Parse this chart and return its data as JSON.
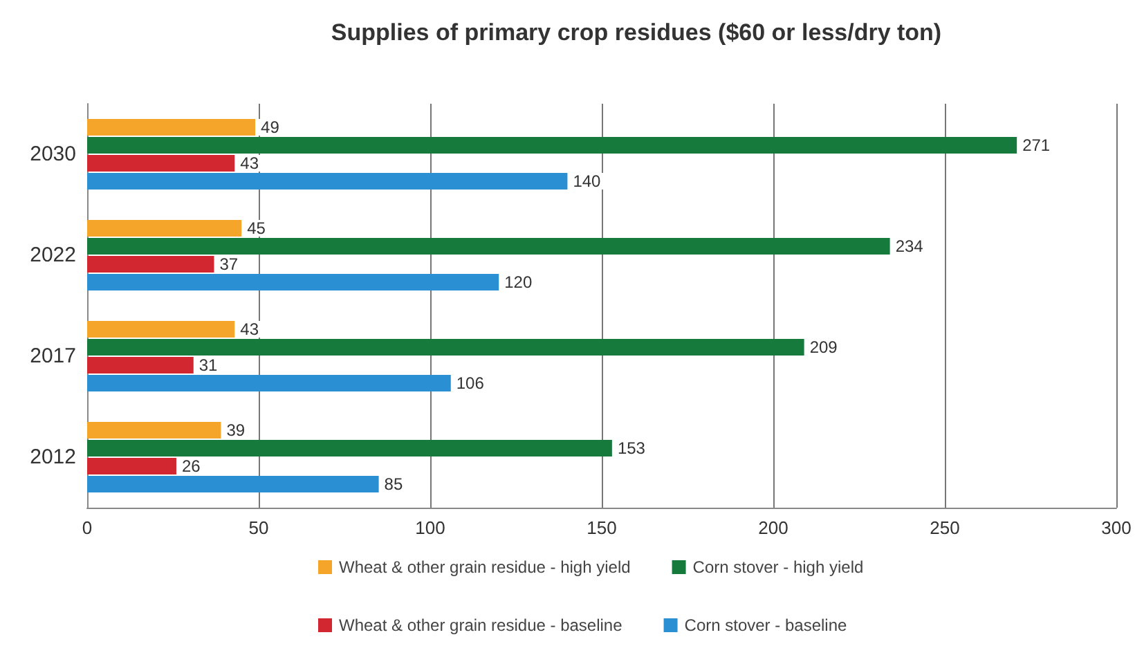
{
  "chart_data": {
    "type": "bar",
    "orientation": "horizontal",
    "title": "Supplies of primary crop residues ($60 or less/dry ton)",
    "categories": [
      "2030",
      "2022",
      "2017",
      "2012"
    ],
    "series": [
      {
        "name": "Wheat & other grain residue - high yield",
        "color": "#f5a52a",
        "values": [
          49,
          45,
          43,
          39
        ]
      },
      {
        "name": "Corn stover - high yield",
        "color": "#167a3c",
        "values": [
          271,
          234,
          209,
          153
        ]
      },
      {
        "name": "Wheat & other grain residue - baseline",
        "color": "#d22630",
        "values": [
          43,
          37,
          31,
          26
        ]
      },
      {
        "name": "Corn stover - baseline",
        "color": "#2b8fd3",
        "values": [
          140,
          120,
          106,
          85
        ]
      }
    ],
    "xlim": [
      0,
      300
    ],
    "xticks": [
      0,
      50,
      100,
      150,
      200,
      250,
      300
    ],
    "grid": "x",
    "legend": "bottom",
    "data_labels": true
  }
}
